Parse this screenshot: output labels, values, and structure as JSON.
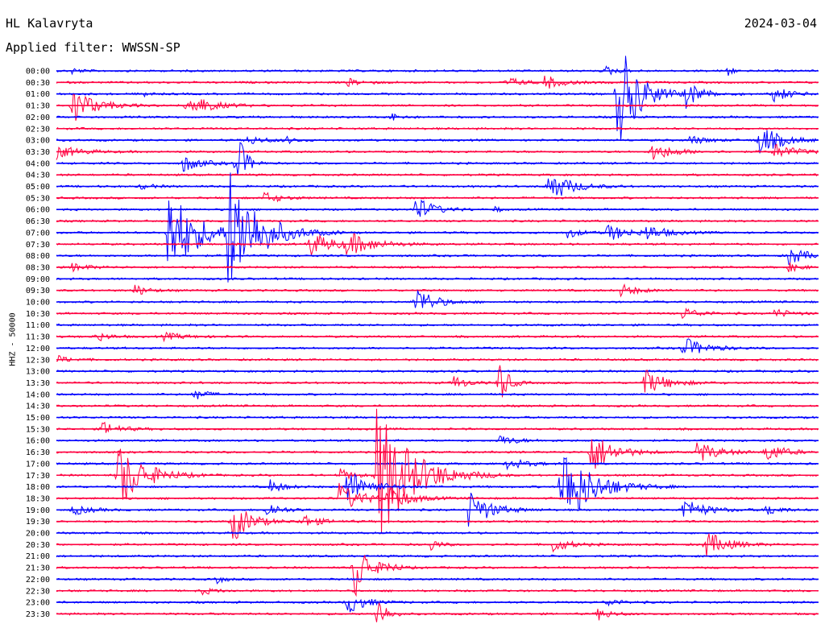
{
  "header": {
    "station": "HL Kalavryta",
    "date": "2024-03-04",
    "filter": "Applied filter: WWSSN-SP"
  },
  "chart_data": {
    "type": "line",
    "ylabel": "HHZ - 50000",
    "colors": [
      "#0000ff",
      "#ff0040"
    ],
    "rows": [
      "00:00",
      "00:30",
      "01:00",
      "01:30",
      "02:00",
      "02:30",
      "03:00",
      "03:30",
      "04:00",
      "04:30",
      "05:00",
      "05:30",
      "06:00",
      "06:30",
      "07:00",
      "07:30",
      "08:00",
      "08:30",
      "09:00",
      "09:30",
      "10:00",
      "10:30",
      "11:00",
      "11:30",
      "12:00",
      "12:30",
      "13:00",
      "13:30",
      "14:00",
      "14:30",
      "15:00",
      "15:30",
      "16:00",
      "16:30",
      "17:00",
      "17:30",
      "18:00",
      "18:30",
      "19:00",
      "19:30",
      "20:00",
      "20:30",
      "21:00",
      "21:30",
      "22:00",
      "22:30",
      "23:00",
      "23:30"
    ],
    "events": [
      {
        "row": 0,
        "x": 0.02,
        "amp": 0.4,
        "dur": 0.02
      },
      {
        "row": 0,
        "x": 0.72,
        "amp": 0.6,
        "dur": 0.03
      },
      {
        "row": 0,
        "x": 0.88,
        "amp": 1.2,
        "dur": 0.01
      },
      {
        "row": 1,
        "x": 0.38,
        "amp": 0.5,
        "dur": 0.04
      },
      {
        "row": 1,
        "x": 0.59,
        "amp": 0.8,
        "dur": 0.03
      },
      {
        "row": 1,
        "x": 0.64,
        "amp": 0.9,
        "dur": 0.04
      },
      {
        "row": 2,
        "x": 0.115,
        "amp": 0.6,
        "dur": 0.01
      },
      {
        "row": 2,
        "x": 0.735,
        "amp": 7.5,
        "dur": 0.05
      },
      {
        "row": 2,
        "x": 0.825,
        "amp": 1.6,
        "dur": 0.04
      },
      {
        "row": 2,
        "x": 0.94,
        "amp": 1.0,
        "dur": 0.04
      },
      {
        "row": 3,
        "x": 0.02,
        "amp": 2.5,
        "dur": 0.05
      },
      {
        "row": 3,
        "x": 0.17,
        "amp": 1.8,
        "dur": 0.05
      },
      {
        "row": 4,
        "x": 0.44,
        "amp": 0.8,
        "dur": 0.02
      },
      {
        "row": 6,
        "x": 0.25,
        "amp": 0.6,
        "dur": 0.04
      },
      {
        "row": 6,
        "x": 0.3,
        "amp": 0.5,
        "dur": 0.02
      },
      {
        "row": 6,
        "x": 0.83,
        "amp": 0.6,
        "dur": 0.04
      },
      {
        "row": 6,
        "x": 0.92,
        "amp": 2.2,
        "dur": 0.05
      },
      {
        "row": 7,
        "x": 0.0,
        "amp": 0.9,
        "dur": 0.05
      },
      {
        "row": 7,
        "x": 0.78,
        "amp": 1.2,
        "dur": 0.05
      },
      {
        "row": 7,
        "x": 0.94,
        "amp": 1.0,
        "dur": 0.05
      },
      {
        "row": 8,
        "x": 0.165,
        "amp": 1.2,
        "dur": 0.04
      },
      {
        "row": 8,
        "x": 0.235,
        "amp": 5.0,
        "dur": 0.02
      },
      {
        "row": 10,
        "x": 0.11,
        "amp": 0.4,
        "dur": 0.03
      },
      {
        "row": 10,
        "x": 0.645,
        "amp": 2.2,
        "dur": 0.05
      },
      {
        "row": 11,
        "x": 0.27,
        "amp": 0.8,
        "dur": 0.04
      },
      {
        "row": 12,
        "x": 0.47,
        "amp": 1.8,
        "dur": 0.04
      },
      {
        "row": 12,
        "x": 0.575,
        "amp": 0.6,
        "dur": 0.01
      },
      {
        "row": 14,
        "x": 0.145,
        "amp": 6.0,
        "dur": 0.07
      },
      {
        "row": 14,
        "x": 0.225,
        "amp": 8.0,
        "dur": 0.07
      },
      {
        "row": 14,
        "x": 0.67,
        "amp": 0.7,
        "dur": 0.03
      },
      {
        "row": 14,
        "x": 0.72,
        "amp": 1.2,
        "dur": 0.05
      },
      {
        "row": 14,
        "x": 0.77,
        "amp": 1.0,
        "dur": 0.05
      },
      {
        "row": 15,
        "x": 0.33,
        "amp": 1.6,
        "dur": 0.06
      },
      {
        "row": 15,
        "x": 0.38,
        "amp": 1.4,
        "dur": 0.06
      },
      {
        "row": 16,
        "x": 0.96,
        "amp": 1.3,
        "dur": 0.04
      },
      {
        "row": 17,
        "x": 0.02,
        "amp": 0.5,
        "dur": 0.04
      },
      {
        "row": 17,
        "x": 0.96,
        "amp": 0.6,
        "dur": 0.03
      },
      {
        "row": 19,
        "x": 0.1,
        "amp": 0.9,
        "dur": 0.03
      },
      {
        "row": 19,
        "x": 0.74,
        "amp": 0.8,
        "dur": 0.04
      },
      {
        "row": 20,
        "x": 0.47,
        "amp": 2.3,
        "dur": 0.04
      },
      {
        "row": 21,
        "x": 0.82,
        "amp": 0.8,
        "dur": 0.04
      },
      {
        "row": 21,
        "x": 0.94,
        "amp": 0.6,
        "dur": 0.04
      },
      {
        "row": 23,
        "x": 0.05,
        "amp": 0.7,
        "dur": 0.03
      },
      {
        "row": 23,
        "x": 0.14,
        "amp": 0.5,
        "dur": 0.05
      },
      {
        "row": 24,
        "x": 0.82,
        "amp": 1.5,
        "dur": 0.05
      },
      {
        "row": 25,
        "x": 0.0,
        "amp": 0.5,
        "dur": 0.03
      },
      {
        "row": 27,
        "x": 0.52,
        "amp": 1.0,
        "dur": 0.03
      },
      {
        "row": 27,
        "x": 0.58,
        "amp": 3.5,
        "dur": 0.02
      },
      {
        "row": 27,
        "x": 0.77,
        "amp": 1.8,
        "dur": 0.05
      },
      {
        "row": 28,
        "x": 0.18,
        "amp": 0.8,
        "dur": 0.03
      },
      {
        "row": 31,
        "x": 0.06,
        "amp": 0.9,
        "dur": 0.04
      },
      {
        "row": 32,
        "x": 0.58,
        "amp": 0.7,
        "dur": 0.04
      },
      {
        "row": 33,
        "x": 0.7,
        "amp": 3.0,
        "dur": 0.05
      },
      {
        "row": 33,
        "x": 0.84,
        "amp": 1.4,
        "dur": 0.05
      },
      {
        "row": 33,
        "x": 0.93,
        "amp": 1.4,
        "dur": 0.04
      },
      {
        "row": 34,
        "x": 0.59,
        "amp": 0.7,
        "dur": 0.05
      },
      {
        "row": 35,
        "x": 0.08,
        "amp": 4.5,
        "dur": 0.06
      },
      {
        "row": 35,
        "x": 0.37,
        "amp": 0.9,
        "dur": 0.03
      },
      {
        "row": 35,
        "x": 0.42,
        "amp": 9.0,
        "dur": 0.08
      },
      {
        "row": 36,
        "x": 0.28,
        "amp": 0.9,
        "dur": 0.03
      },
      {
        "row": 36,
        "x": 0.38,
        "amp": 2.5,
        "dur": 0.05
      },
      {
        "row": 36,
        "x": 0.66,
        "amp": 6.0,
        "dur": 0.07
      },
      {
        "row": 37,
        "x": 0.37,
        "amp": 2.0,
        "dur": 0.05
      },
      {
        "row": 37,
        "x": 0.43,
        "amp": 1.8,
        "dur": 0.05
      },
      {
        "row": 38,
        "x": 0.02,
        "amp": 0.7,
        "dur": 0.04
      },
      {
        "row": 38,
        "x": 0.275,
        "amp": 1.2,
        "dur": 0.03
      },
      {
        "row": 38,
        "x": 0.54,
        "amp": 2.5,
        "dur": 0.05
      },
      {
        "row": 38,
        "x": 0.82,
        "amp": 1.6,
        "dur": 0.05
      },
      {
        "row": 38,
        "x": 0.93,
        "amp": 0.9,
        "dur": 0.03
      },
      {
        "row": 39,
        "x": 0.23,
        "amp": 3.0,
        "dur": 0.04
      },
      {
        "row": 39,
        "x": 0.32,
        "amp": 1.0,
        "dur": 0.04
      },
      {
        "row": 41,
        "x": 0.49,
        "amp": 0.9,
        "dur": 0.02
      },
      {
        "row": 41,
        "x": 0.65,
        "amp": 1.0,
        "dur": 0.04
      },
      {
        "row": 41,
        "x": 0.85,
        "amp": 1.8,
        "dur": 0.05
      },
      {
        "row": 43,
        "x": 0.39,
        "amp": 5.0,
        "dur": 0.03
      },
      {
        "row": 43,
        "x": 0.43,
        "amp": 0.6,
        "dur": 0.03
      },
      {
        "row": 44,
        "x": 0.21,
        "amp": 0.5,
        "dur": 0.02
      },
      {
        "row": 45,
        "x": 0.19,
        "amp": 0.5,
        "dur": 0.03
      },
      {
        "row": 46,
        "x": 0.38,
        "amp": 1.6,
        "dur": 0.04
      },
      {
        "row": 46,
        "x": 0.72,
        "amp": 0.6,
        "dur": 0.03
      },
      {
        "row": 47,
        "x": 0.42,
        "amp": 2.8,
        "dur": 0.02
      },
      {
        "row": 47,
        "x": 0.71,
        "amp": 0.8,
        "dur": 0.03
      }
    ]
  }
}
